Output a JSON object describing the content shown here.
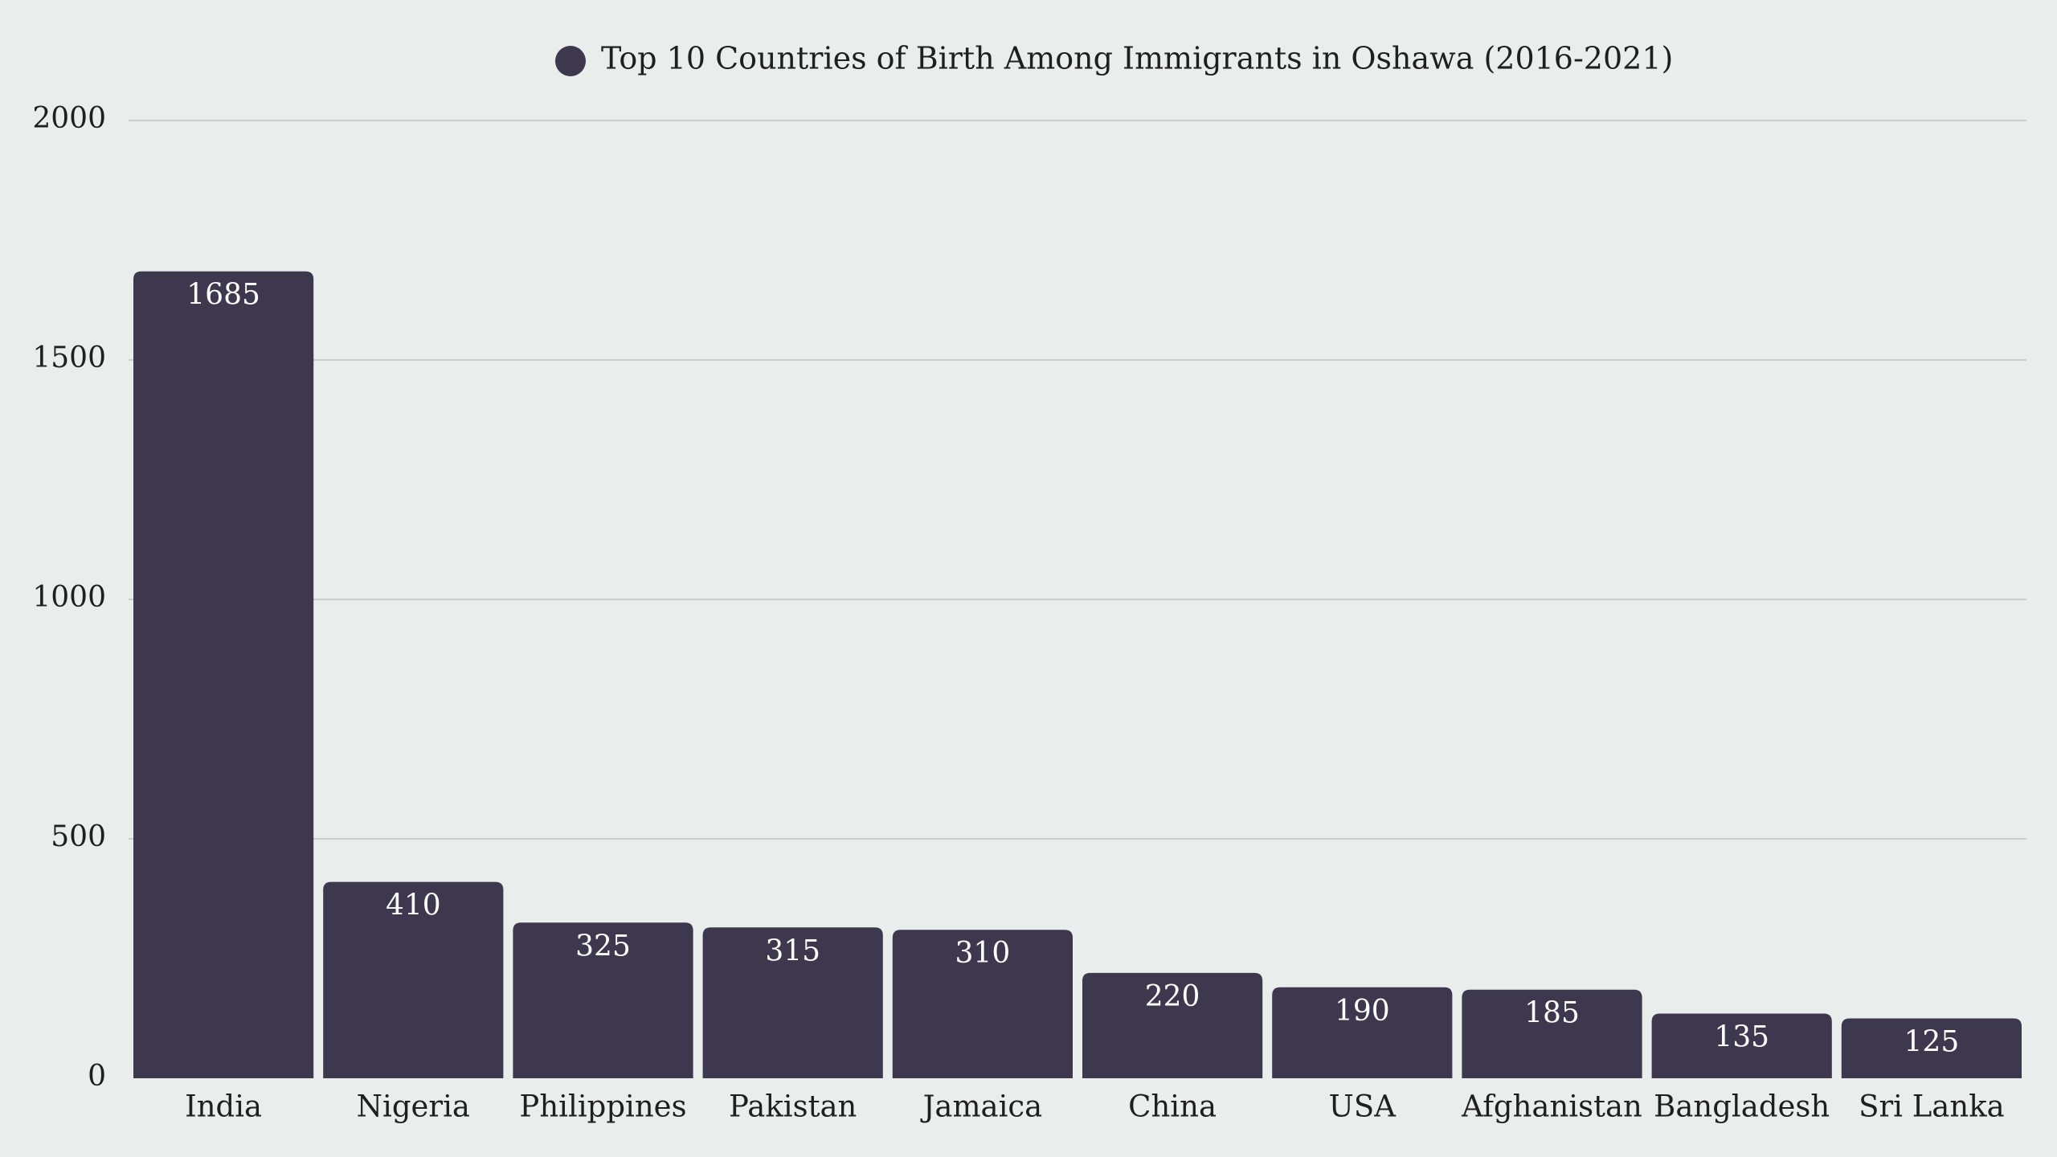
{
  "chart_data": {
    "type": "bar",
    "title": "Top 10 Countries of Birth Among Immigrants in Oshawa (2016-2021)",
    "legend": [
      {
        "name": "Top 10 Countries of Birth Among Immigrants in Oshawa (2016-2021)",
        "color": "#3d384d"
      }
    ],
    "legend_position": "top-center",
    "categories": [
      "India",
      "Nigeria",
      "Philippines",
      "Pakistan",
      "Jamaica",
      "China",
      "USA",
      "Afghanistan",
      "Bangladesh",
      "Sri Lanka"
    ],
    "values": [
      1685,
      410,
      325,
      315,
      310,
      220,
      190,
      185,
      135,
      125
    ],
    "value_labels": [
      "1685",
      "410",
      "325",
      "315",
      "310",
      "220",
      "190",
      "185",
      "135",
      "125"
    ],
    "ylim": [
      0,
      2000
    ],
    "yticks": [
      0,
      500,
      1000,
      1500,
      2000
    ],
    "ytick_labels": [
      "0",
      "500",
      "1000",
      "1500",
      "2000"
    ],
    "xlabel": "",
    "ylabel": "",
    "grid": true,
    "bar_color": "#3d384d",
    "background_color": "#e9eeec",
    "grid_color": "#c9cfcd",
    "value_label_color": "#ffffff"
  }
}
